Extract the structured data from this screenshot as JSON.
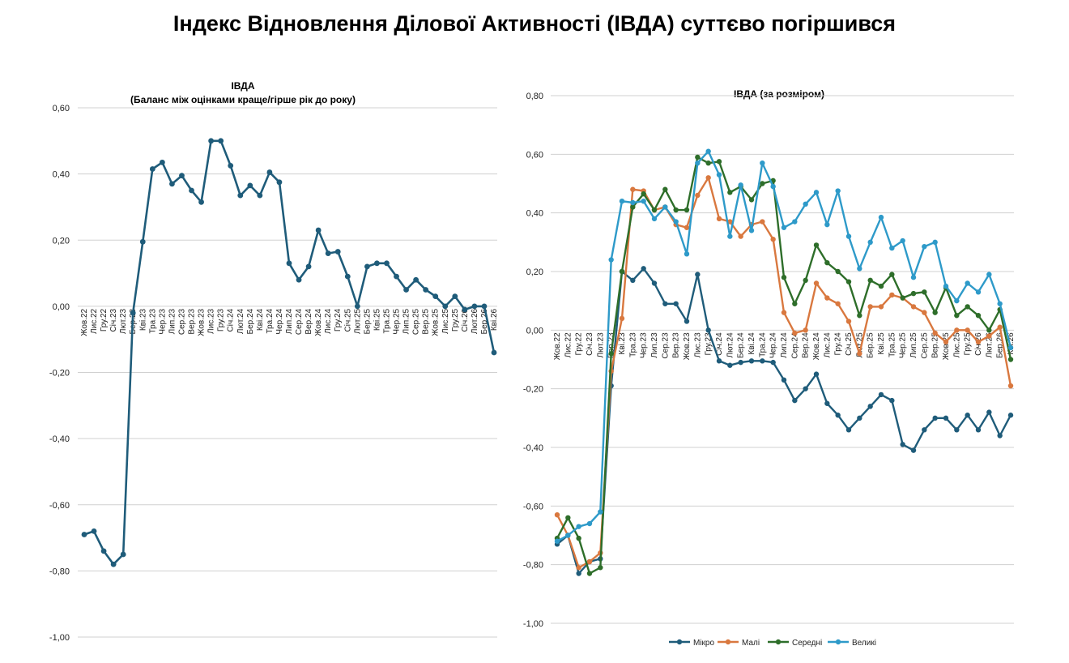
{
  "page": {
    "title": "Індекс Відновлення Ділової Активності (ІВДА) суттєво погіршився"
  },
  "chart_data": [
    {
      "type": "line",
      "title": "ІВДА",
      "subtitle": "(Баланс між оцінками краще/гірше рік до року)",
      "xlabel": "",
      "ylabel": "",
      "ylim": [
        -1.0,
        0.6
      ],
      "yticks": [
        -1.0,
        -0.8,
        -0.6,
        -0.4,
        -0.2,
        0.0,
        0.2,
        0.4,
        0.6
      ],
      "ytick_labels": [
        "-1,00",
        "-0,80",
        "-0,60",
        "-0,40",
        "-0,20",
        "0,00",
        "0,20",
        "0,40",
        "0,60"
      ],
      "grid": true,
      "legend": "none",
      "categories": [
        "Жов.22",
        "Лис.22",
        "Гру.22",
        "Січ.23",
        "Лют.23",
        "Бер.23",
        "Кві.23",
        "Тра.23",
        "Чер.23",
        "Лип.23",
        "Сер.23",
        "Вер.23",
        "Жов.23",
        "Лис.23",
        "Гру.23",
        "Січ.24",
        "Лют.24",
        "Бер.24",
        "Кві.24",
        "Тра.24",
        "Чер.24",
        "Лип.24",
        "Сер.24",
        "Вер.24",
        "Жов.24",
        "Лис.24",
        "Гру.24",
        "Січ.25",
        "Лют.25",
        "Бер.25",
        "Кві.25",
        "Тра.25",
        "Чер.25",
        "Лип.25",
        "Сер.25",
        "Вер.25",
        "Жов.25",
        "Лис.25",
        "Гру.25",
        "Січ.26",
        "Лют.26",
        "Бер.26",
        "Кві.26"
      ],
      "tick_labels": [
        "Жов.22",
        "Лис.22",
        "Гру.22",
        "Січ.23",
        "Лют.23",
        "Бер.23",
        "Кві.23",
        "Тра.23",
        "Чер.23",
        "Лип.23",
        "Сер.23",
        "Вер.23",
        "Жов.23",
        "Лис.23",
        "Гру.23",
        "Січ.24",
        "Лют.24",
        "Бер.24",
        "Кві.24",
        "Тра.24",
        "Чер.24",
        "Лип.24",
        "Сер.24",
        "Вер.24",
        "Жов.24",
        "Лис.24",
        "Гру.24",
        "Січ.25",
        "Лют.25",
        "Бер.25",
        "Кві.25",
        "Тра.25",
        "Чер.25",
        "Лип.25",
        "Сер.25",
        "Вер.25",
        "Жов.25",
        "Лис.25",
        "Гру.25",
        "Січ.26",
        "Лют.26",
        "Бер.26",
        "Кві.26"
      ],
      "series": [
        {
          "color": "#1f5c7a",
          "values": [
            -0.69,
            -0.68,
            -0.74,
            -0.78,
            -0.75,
            -0.02,
            0.195,
            0.415,
            0.435,
            0.37,
            0.395,
            0.35,
            0.315,
            0.5,
            0.5,
            0.425,
            0.335,
            0.365,
            0.335,
            0.405,
            0.375,
            0.13,
            0.08,
            0.12,
            0.23,
            0.16,
            0.165,
            0.09,
            0.0,
            0.12,
            0.13,
            0.13,
            0.09,
            0.05,
            0.08,
            0.05,
            0.03,
            0.0,
            0.03,
            -0.01,
            0.0,
            0.0,
            -0.14
          ]
        }
      ]
    },
    {
      "type": "line",
      "title": "ІВДА (за розміром)",
      "xlabel": "",
      "ylabel": "",
      "ylim": [
        -1.0,
        0.8
      ],
      "yticks": [
        -1.0,
        -0.8,
        -0.6,
        -0.4,
        -0.2,
        0.0,
        0.2,
        0.4,
        0.6,
        0.8
      ],
      "ytick_labels": [
        "-1,00",
        "-0,80",
        "-0,60",
        "-0,40",
        "-0,20",
        "0,00",
        "0,20",
        "0,40",
        "0,60",
        "0,80"
      ],
      "grid": true,
      "legend": "bottom",
      "categories": [
        "Жов.22",
        "Лис.22",
        "Гру.22",
        "Січ.23",
        "Лют.23",
        "Бер.23",
        "Кві.23",
        "Тра.23",
        "Чер.23",
        "Лип.23",
        "Сер.23",
        "Вер.23",
        "Жов.23",
        "Лис.23",
        "Гру.23",
        "Січ.24",
        "Лют.24",
        "Бер.24",
        "Кві.24",
        "Тра.24",
        "Чер.24",
        "Лип.24",
        "Сер.24",
        "Вер.24",
        "Жов.24",
        "Лис.24",
        "Гру.24",
        "Січ.25",
        "Лют.25",
        "Бер.25",
        "Кві.25",
        "Тра.25",
        "Чер.25",
        "Лип.25",
        "Сер.25",
        "Вер.25",
        "Жов.25",
        "Лис.25",
        "Гру.25",
        "Січ.26",
        "Лют.26",
        "Бер.26",
        "Кві.26"
      ],
      "tick_labels": [
        "Жов.22",
        "Лис.22",
        "Гру.22",
        "Січ.23",
        "Лют.23",
        "Бер.23",
        "Кві.23",
        "Тра.23",
        "Чер.23",
        "Лип.23",
        "Сер.23",
        "Вер.23",
        "Жов.23",
        "Лис.23",
        "Гру.23",
        "Січ.24",
        "Лют.24",
        "Бер.24",
        "Кві.24",
        "Тра.24",
        "Чер.24",
        "Лип.24",
        "Сер.24",
        "Вер.24",
        "Жов.24",
        "Лис.24",
        "Гру.24",
        "Січ.25",
        "Лют.25",
        "Бер.25",
        "Кві.25",
        "Тра.25",
        "Чер.25",
        "Лип.25",
        "Сер.25",
        "Вер.25",
        "Жов.25",
        "Лис.25",
        "Гру.25",
        "Січ.26",
        "Лют.26",
        "Бер.26",
        "Кві.26"
      ],
      "series": [
        {
          "name": "Мікро",
          "color": "#1f5c7a",
          "values": [
            -0.73,
            -0.7,
            -0.83,
            -0.79,
            -0.78,
            -0.19,
            0.2,
            0.17,
            0.21,
            0.16,
            0.09,
            0.09,
            0.03,
            0.19,
            0.0,
            -0.105,
            -0.12,
            -0.11,
            -0.105,
            -0.105,
            -0.11,
            -0.17,
            -0.24,
            -0.2,
            -0.15,
            -0.25,
            -0.29,
            -0.34,
            -0.3,
            -0.26,
            -0.22,
            -0.24,
            -0.39,
            -0.41,
            -0.34,
            -0.3,
            -0.3,
            -0.34,
            -0.29,
            -0.34,
            -0.28,
            -0.36,
            -0.29
          ]
        },
        {
          "name": "Малі",
          "color": "#d9783f",
          "values": [
            -0.63,
            -0.7,
            -0.81,
            -0.79,
            -0.76,
            -0.14,
            0.04,
            0.48,
            0.475,
            0.41,
            0.42,
            0.36,
            0.35,
            0.46,
            0.52,
            0.38,
            0.37,
            0.32,
            0.36,
            0.37,
            0.31,
            0.06,
            -0.01,
            0.0,
            0.16,
            0.11,
            0.09,
            0.03,
            -0.08,
            0.08,
            0.08,
            0.12,
            0.11,
            0.08,
            0.06,
            -0.01,
            -0.04,
            0.0,
            0.0,
            -0.04,
            -0.02,
            0.01,
            -0.19
          ]
        },
        {
          "name": "Середні",
          "color": "#2e6e2a",
          "values": [
            -0.71,
            -0.64,
            -0.71,
            -0.83,
            -0.81,
            -0.08,
            0.2,
            0.42,
            0.465,
            0.41,
            0.48,
            0.41,
            0.41,
            0.59,
            0.57,
            0.575,
            0.47,
            0.49,
            0.445,
            0.5,
            0.51,
            0.18,
            0.09,
            0.17,
            0.29,
            0.23,
            0.2,
            0.165,
            0.05,
            0.17,
            0.15,
            0.19,
            0.11,
            0.125,
            0.13,
            0.06,
            0.145,
            0.05,
            0.08,
            0.05,
            0.0,
            0.07,
            -0.1
          ]
        },
        {
          "name": "Великі",
          "color": "#2e9ac9",
          "values": [
            -0.72,
            -0.7,
            -0.67,
            -0.66,
            -0.62,
            0.24,
            0.44,
            0.435,
            0.44,
            0.38,
            0.42,
            0.37,
            0.26,
            0.57,
            0.61,
            0.53,
            0.32,
            0.495,
            0.34,
            0.57,
            0.49,
            0.35,
            0.37,
            0.43,
            0.47,
            0.36,
            0.475,
            0.32,
            0.21,
            0.3,
            0.385,
            0.28,
            0.305,
            0.18,
            0.285,
            0.3,
            0.15,
            0.1,
            0.16,
            0.13,
            0.19,
            0.09,
            -0.06
          ]
        }
      ]
    }
  ]
}
